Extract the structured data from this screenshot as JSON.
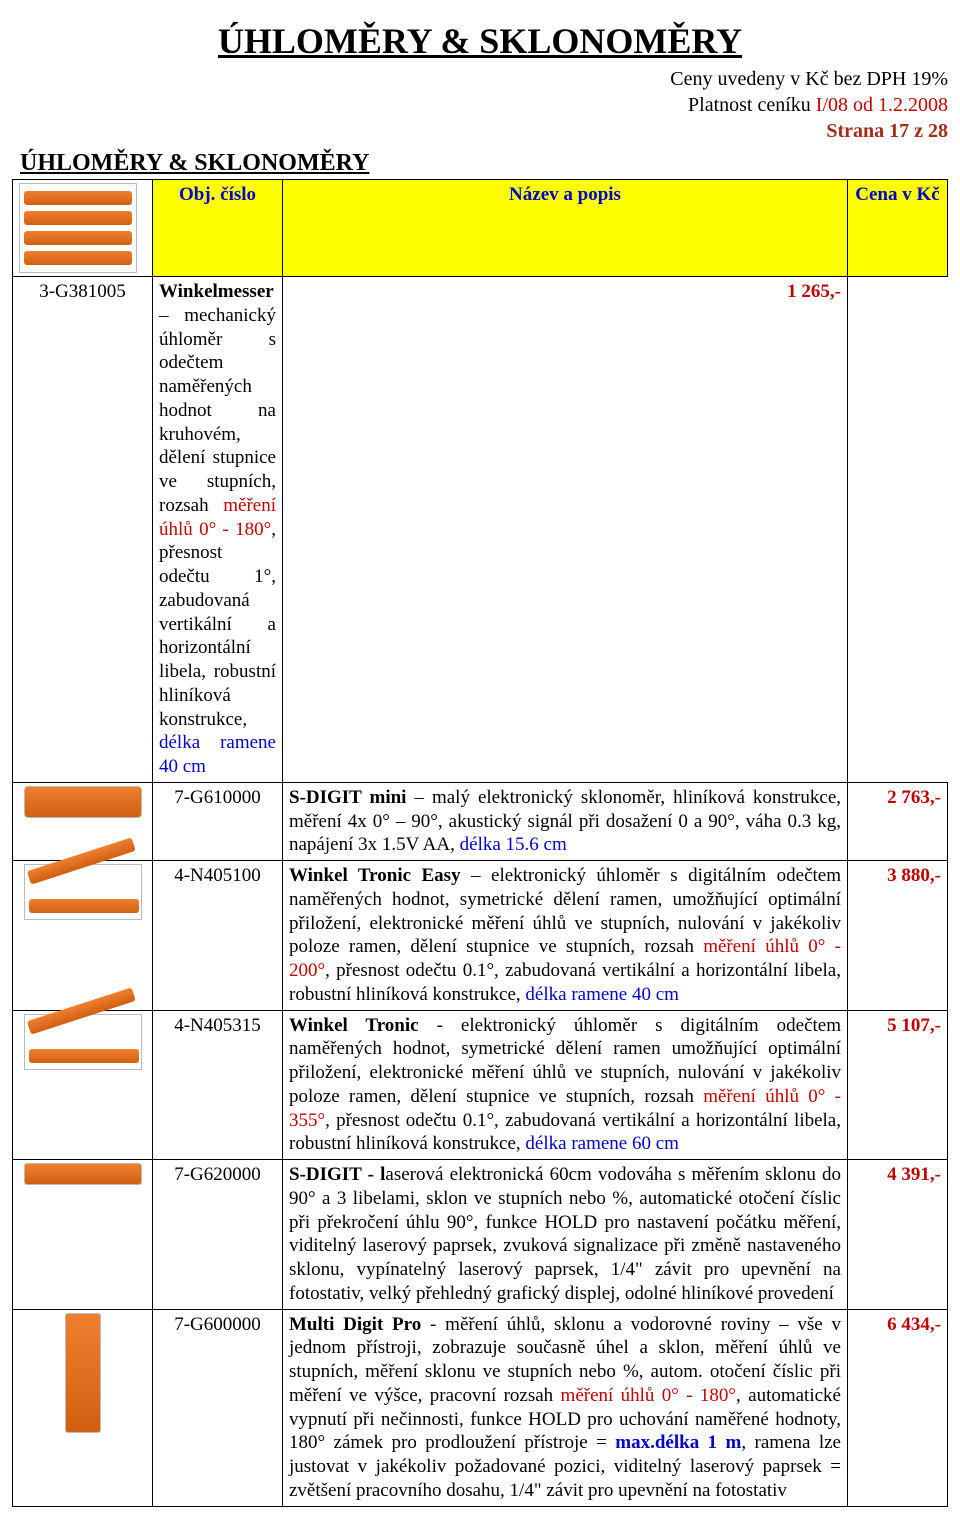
{
  "title": "ÚHLOMĚRY & SKLONOMĚRY",
  "meta": {
    "line1": "Ceny uvedeny v Kč bez DPH 19%",
    "line2_prefix": "Platnost ceníku ",
    "line2_red": "I/08 od 1.2.2008",
    "line3": "Strana 17 z 28"
  },
  "section_title": "ÚHLOMĚRY & SKLONOMĚRY",
  "headers": {
    "code": "Obj. číslo",
    "desc": "Název a popis",
    "price": "Cena v Kč"
  },
  "rows": [
    {
      "code": "3-G381005",
      "price": "1 265,-",
      "thumb": "thumb-cross",
      "desc_parts": [
        {
          "t": "Winkelmesser",
          "cls": "b"
        },
        {
          "t": " – mechanický úhloměr s odečtem naměřených hodnot na kruhovém, dělení stupnice ve stupních, rozsah "
        },
        {
          "t": "měření úhlů 0° - 180°",
          "cls": "red"
        },
        {
          "t": ", přesnost odečtu 1°, zabudovaná vertikální a horizontální libela, robustní hliníková konstrukce, "
        },
        {
          "t": "délka ramene 40 cm",
          "cls": "blue"
        }
      ]
    },
    {
      "code": "7-G610000",
      "price": "2 763,-",
      "thumb": "thumb-small",
      "desc_parts": [
        {
          "t": "S-DIGIT mini",
          "cls": "b"
        },
        {
          "t": " – malý elektronický sklonoměr, hliníková konstrukce, měření 4x 0° – 90°, akustický signál při dosažení 0 a 90°, váha 0.3 kg, napájení 3x 1.5V AA, "
        },
        {
          "t": "délka 15.6 cm",
          "cls": "blue"
        }
      ]
    },
    {
      "code": "4-N405100",
      "price": "3 880,-",
      "thumb": "thumb-angle",
      "desc_parts": [
        {
          "t": "Winkel Tronic Easy",
          "cls": "b"
        },
        {
          "t": " – elektronický úhloměr s digitálním odečtem naměřených hodnot, symetrické dělení ramen, umožňující optimální přiložení, elektronické měření úhlů ve stupních, nulování v jakékoliv poloze ramen, dělení stupnice ve stupních, rozsah "
        },
        {
          "t": "měření úhlů 0° - 200°",
          "cls": "red"
        },
        {
          "t": ", přesnost odečtu 0.1°, zabudovaná vertikální a horizontální libela, robustní hliníková konstrukce, "
        },
        {
          "t": "délka ramene 40 cm",
          "cls": "blue"
        }
      ]
    },
    {
      "code": "4-N405315",
      "price": "5 107,-",
      "thumb": "thumb-angle",
      "desc_parts": [
        {
          "t": "Winkel Tronic",
          "cls": "b"
        },
        {
          "t": " - elektronický úhloměr s digitálním odečtem naměřených hodnot, symetrické dělení ramen umožňující optimální přiložení, elektronické měření úhlů ve stupních, nulování v jakékoliv poloze ramen, dělení stupnice ve stupních, rozsah "
        },
        {
          "t": "měření úhlů 0° - 355°",
          "cls": "red"
        },
        {
          "t": ", přesnost odečtu 0.1°, zabudovaná vertikální a horizontální libela, robustní hliníková konstrukce, "
        },
        {
          "t": "délka ramene 60 cm",
          "cls": "blue"
        }
      ]
    },
    {
      "code": "7-G620000",
      "price": "4 391,-",
      "thumb": "thumb-level",
      "desc_parts": [
        {
          "t": "S-DIGIT - l",
          "cls": "b"
        },
        {
          "t": "aserová elektronická 60cm vodováha s měřením sklonu do 90° a 3 libelami, sklon ve stupních nebo %, automatické otočení číslic při překročení úhlu 90°, funkce HOLD pro nastavení počátku měření, viditelný laserový paprsek, zvuková signalizace při změně nastaveného sklonu, vypínatelný laserový paprsek, 1/4\" závit pro upevnění na fotostativ, velký přehledný grafický displej, odolné hliníkové provedení"
        }
      ]
    },
    {
      "code": "7-G600000",
      "price": "6 434,-",
      "thumb": "thumb-vert",
      "desc_parts": [
        {
          "t": "Multi Digit Pro",
          "cls": "b"
        },
        {
          "t": " - měření úhlů, sklonu a vodorovné roviny – vše v jednom přístroji, zobrazuje současně úhel a sklon, měření úhlů ve stupních, měření sklonu ve stupních nebo %, autom. otočení číslic při měření ve výšce, pracovní rozsah "
        },
        {
          "t": "měření úhlů 0° - 180°",
          "cls": "red"
        },
        {
          "t": ", automatické vypnutí při nečinnosti, funkce HOLD pro uchování naměřené hodnoty, 180° zámek pro prodloužení přístroje = "
        },
        {
          "t": "max.délka 1 m",
          "cls": "blue b"
        },
        {
          "t": ", ramena lze justovat v jakékoliv požadované pozici, viditelný laserový paprsek = zvětšení pracovního dosahu, 1/4\" závit pro upevnění na fotostativ"
        }
      ]
    }
  ],
  "header_thumb": "thumb-stack"
}
